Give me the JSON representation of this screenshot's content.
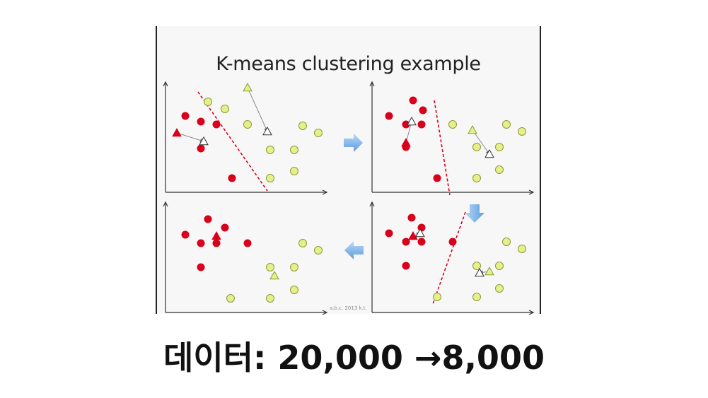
{
  "figure": {
    "title": "K-means clustering example",
    "watermark": "a.b.c. 2013 k.t.",
    "colors": {
      "cluster_a": "#d9001b",
      "cluster_b": "#e6f08a",
      "divider": "#d9001b",
      "flow_arrow": "#7fb4e8"
    },
    "flow": [
      "right-arrow",
      "down-arrow",
      "left-arrow"
    ],
    "panels": [
      {
        "name": "iteration-1",
        "red_points": [
          [
            30,
            48
          ],
          [
            52,
            56
          ],
          [
            74,
            60
          ],
          [
            52,
            94
          ],
          [
            96,
            136
          ]
        ],
        "yellow_points": [
          [
            62,
            28
          ],
          [
            86,
            38
          ],
          [
            118,
            60
          ],
          [
            150,
            96
          ],
          [
            184,
            96
          ],
          [
            196,
            62
          ],
          [
            218,
            72
          ],
          [
            184,
            126
          ],
          [
            150,
            136
          ]
        ],
        "red_centroids": [
          [
            18,
            72
          ]
        ],
        "yellow_centroids": [
          [
            118,
            8
          ]
        ],
        "white_centroids": [
          [
            56,
            84
          ],
          [
            146,
            70
          ]
        ],
        "divider": [
          [
            48,
            14
          ],
          [
            146,
            154
          ]
        ]
      },
      {
        "name": "iteration-2",
        "red_points": [
          [
            26,
            48
          ],
          [
            60,
            26
          ],
          [
            74,
            40
          ],
          [
            50,
            60
          ],
          [
            72,
            60
          ],
          [
            50,
            92
          ],
          [
            94,
            136
          ]
        ],
        "yellow_points": [
          [
            116,
            60
          ],
          [
            150,
            92
          ],
          [
            182,
            92
          ],
          [
            192,
            60
          ],
          [
            214,
            70
          ],
          [
            182,
            124
          ],
          [
            150,
            136
          ]
        ],
        "red_centroids": [
          [
            50,
            86
          ]
        ],
        "yellow_centroids": [
          [
            144,
            68
          ]
        ],
        "white_centroids": [
          [
            58,
            56
          ],
          [
            168,
            102
          ]
        ],
        "divider": [
          [
            90,
            26
          ],
          [
            112,
            160
          ]
        ]
      },
      {
        "name": "iteration-4",
        "red_points": [
          [
            30,
            46
          ],
          [
            62,
            24
          ],
          [
            86,
            36
          ],
          [
            52,
            58
          ],
          [
            74,
            58
          ],
          [
            118,
            58
          ],
          [
            52,
            92
          ]
        ],
        "yellow_points": [
          [
            94,
            136
          ],
          [
            150,
            92
          ],
          [
            184,
            92
          ],
          [
            196,
            58
          ],
          [
            218,
            68
          ],
          [
            184,
            124
          ],
          [
            150,
            136
          ]
        ],
        "red_centroids": [
          [
            74,
            48
          ]
        ],
        "yellow_centroids": [
          [
            156,
            104
          ]
        ],
        "white_centroids": [],
        "divider": []
      },
      {
        "name": "iteration-3",
        "red_points": [
          [
            26,
            44
          ],
          [
            58,
            22
          ],
          [
            72,
            36
          ],
          [
            50,
            56
          ],
          [
            72,
            56
          ],
          [
            116,
            56
          ],
          [
            50,
            90
          ]
        ],
        "yellow_points": [
          [
            94,
            134
          ],
          [
            150,
            90
          ],
          [
            182,
            90
          ],
          [
            192,
            56
          ],
          [
            214,
            66
          ],
          [
            182,
            122
          ],
          [
            150,
            134
          ]
        ],
        "red_centroids": [
          [
            60,
            48
          ]
        ],
        "yellow_centroids": [
          [
            168,
            98
          ]
        ],
        "white_centroids": [
          [
            70,
            44
          ],
          [
            154,
            100
          ]
        ],
        "divider": [
          [
            134,
            14
          ],
          [
            88,
            144
          ]
        ]
      }
    ]
  },
  "caption": {
    "text": "데이터: 20,000 →8,000"
  }
}
